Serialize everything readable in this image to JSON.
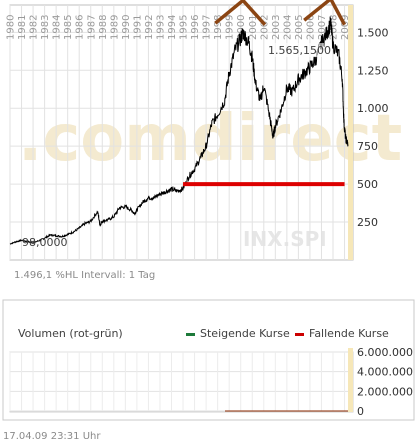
{
  "chart_data": [
    {
      "type": "line",
      "title": "",
      "watermark": ".comdirect",
      "symbol": "INX.SPI",
      "x_tick_labels": [
        "1980",
        "1981",
        "1982",
        "1983",
        "1984",
        "1985",
        "1986",
        "1987",
        "1988",
        "1989",
        "1990",
        "1991",
        "1992",
        "1993",
        "1994",
        "1995",
        "1996",
        "1997",
        "1998",
        "1999",
        "2000",
        "2001",
        "2002",
        "2003",
        "2004",
        "2005",
        "2006",
        "2007",
        "2008",
        "2009"
      ],
      "y_tick_labels": [
        "250",
        "500",
        "750",
        "1.000",
        "1.250",
        "1.500"
      ],
      "ylim": [
        0,
        1680
      ],
      "xlim": [
        1980,
        2009.3
      ],
      "grid": true,
      "low_label": "98,0000",
      "high_label": "1.565,1500",
      "info_text": "1.496,1 %HL   Intervall: 1 Tag",
      "series": [
        {
          "values_x": [
            1980.0,
            1980.5,
            1981.0,
            1981.5,
            1982.0,
            1982.6,
            1983.0,
            1983.5,
            1984.0,
            1984.5,
            1985.0,
            1985.5,
            1986.0,
            1986.5,
            1987.0,
            1987.6,
            1987.8,
            1988.0,
            1988.5,
            1989.0,
            1989.5,
            1990.0,
            1990.5,
            1990.8,
            1991.0,
            1991.5,
            1992.0,
            1992.5,
            1993.0,
            1993.5,
            1994.0,
            1994.5,
            1995.0,
            1995.5,
            1996.0,
            1996.5,
            1997.0,
            1997.5,
            1998.0,
            1998.6,
            1999.0,
            1999.5,
            2000.0,
            2000.2,
            2000.7,
            2001.0,
            2001.3,
            2001.7,
            2002.0,
            2002.5,
            2002.8,
            2003.0,
            2003.5,
            2004.0,
            2004.5,
            2005.0,
            2005.5,
            2006.0,
            2006.5,
            2007.0,
            2007.5,
            2007.8,
            2008.0,
            2008.5,
            2008.8,
            2008.95,
            2009.1,
            2009.3
          ],
          "values_y": [
            106,
            120,
            130,
            122,
            113,
            130,
            145,
            165,
            160,
            155,
            168,
            185,
            210,
            240,
            255,
            320,
            230,
            255,
            265,
            285,
            345,
            350,
            330,
            305,
            330,
            380,
            410,
            410,
            435,
            450,
            465,
            455,
            470,
            550,
            600,
            670,
            750,
            900,
            960,
            1050,
            1230,
            1380,
            1460,
            1500,
            1430,
            1330,
            1160,
            1050,
            1150,
            950,
            810,
            880,
            990,
            1130,
            1110,
            1190,
            1230,
            1270,
            1320,
            1430,
            1500,
            1560,
            1420,
            1350,
            1200,
            900,
            800,
            760
          ]
        }
      ],
      "annotations": [
        {
          "type": "line",
          "color": "#dd0000",
          "x1": 1995.0,
          "x2": 2009.0,
          "y": 500
        },
        {
          "type": "peak_marker",
          "color": "#8b4513",
          "points": [
            [
              1997.8,
              1560
            ],
            [
              2000.2,
              1710
            ],
            [
              2002.1,
              1550
            ]
          ]
        },
        {
          "type": "peak_marker",
          "color": "#8b4513",
          "points": [
            [
              2005.5,
              1580
            ],
            [
              2007.8,
              1720
            ],
            [
              2009.0,
              1550
            ]
          ]
        }
      ]
    },
    {
      "type": "bar",
      "title": "Volumen (rot-grün)",
      "y_tick_labels": [
        "0",
        "2.000.000",
        "4.000.000",
        "6.000.000"
      ],
      "ylim": [
        0,
        6000000
      ],
      "legend": [
        {
          "name": "Steigende Kurse",
          "color": "#1d7a3a"
        },
        {
          "name": "Fallende Kurse",
          "color": "#cc0000"
        }
      ]
    }
  ],
  "footer": {
    "timestamp": "17.04.09   23:31 Uhr"
  },
  "colors": {
    "line": "#000000",
    "grid": "#cfcfcf",
    "frame": "#bfbfbf",
    "highlight": "#f6e7b8"
  }
}
